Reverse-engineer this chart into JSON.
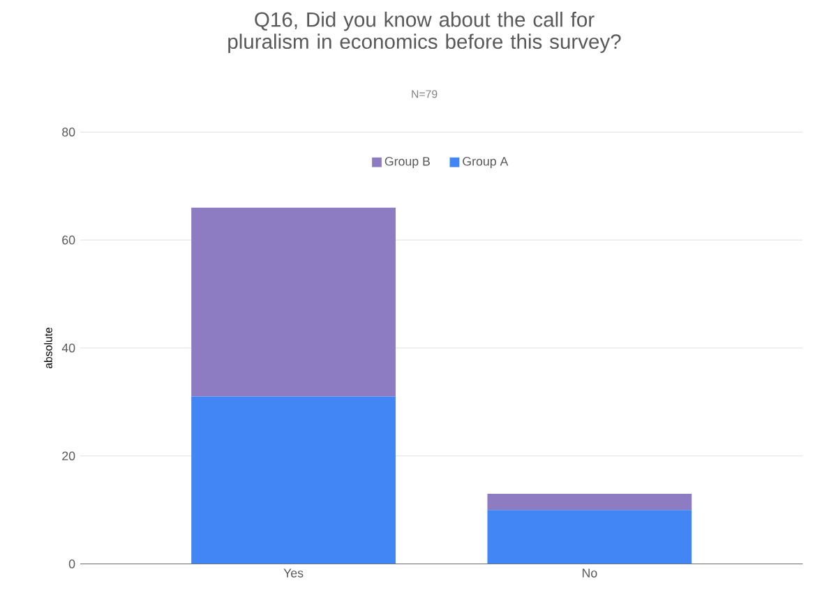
{
  "chart_data": {
    "type": "bar",
    "title": "Q16, Did you know about the call for pluralism in economics before this survey?",
    "subtitle": "N=79",
    "ylabel": "absolute",
    "categories": [
      "Yes",
      "No"
    ],
    "stacked": true,
    "series": [
      {
        "name": "Group A",
        "color": "#4285f4",
        "values": [
          31,
          10
        ]
      },
      {
        "name": "Group B",
        "color": "#8e7cc3",
        "values": [
          35,
          3
        ]
      }
    ],
    "ylim": [
      0,
      80
    ],
    "yticks": [
      0,
      20,
      40,
      60,
      80
    ],
    "grid": "y",
    "legend": "top"
  }
}
